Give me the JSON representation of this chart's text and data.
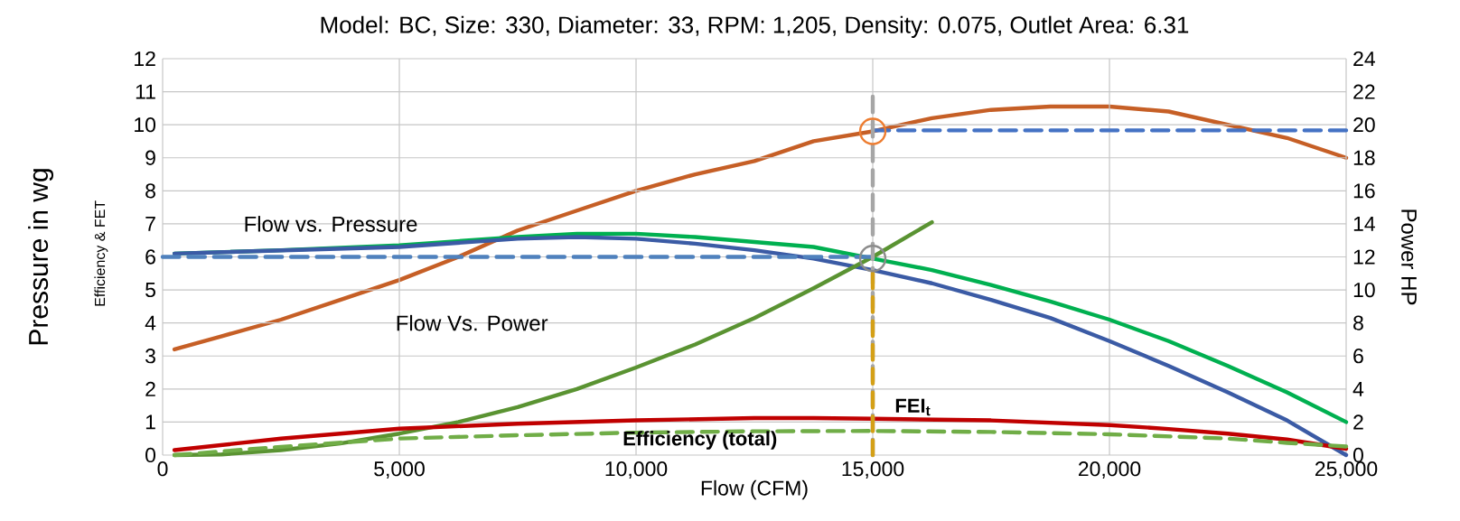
{
  "chart_data": {
    "type": "line",
    "title": "Model: BC, Size: 330, Diameter: 33, RPM: 1,205, Density: 0.075, Outlet Area: 6.31",
    "xlabel": "Flow (CFM)",
    "ylabel": "Pressure in wg",
    "y2label": "Power HP",
    "annotations": [
      "Flow vs. Pressure",
      "Flow Vs. Power",
      "FEI$_{t}$",
      "Efficiency (total)",
      "Efficiency & FET"
    ],
    "xlim": [
      0,
      25000
    ],
    "xticks": [
      0,
      {
        "value": 5000,
        "label": "5,000"
      },
      {
        "value": 10000,
        "label": "10,000"
      },
      {
        "value": 15000,
        "label": "15,000"
      },
      {
        "value": 20000,
        "label": "20,000"
      },
      {
        "value": 25000,
        "label": "25,000"
      }
    ],
    "ylim": [
      0,
      12
    ],
    "yticks": [
      0,
      1,
      2,
      3,
      4,
      5,
      6,
      7,
      8,
      9,
      10,
      11,
      12
    ],
    "y2lim": [
      0,
      24
    ],
    "y2ticks": [
      0,
      2,
      4,
      6,
      8,
      10,
      12,
      14,
      16,
      18,
      20,
      22,
      24
    ],
    "grid": true,
    "line_style": "solid",
    "marker": "none",
    "series": [
      {
        "color": "#00b050",
        "x": [
          250,
          2500,
          5000,
          7500,
          8750,
          10000,
          11250,
          12500,
          13750,
          15000,
          16250,
          17500,
          18750,
          20000,
          21250,
          22500,
          23750,
          25000
        ],
        "values": [
          6.1,
          6.2,
          6.35,
          6.6,
          6.7,
          6.7,
          6.6,
          6.45,
          6.3,
          5.95,
          5.6,
          5.15,
          4.65,
          4.1,
          3.45,
          2.7,
          1.9,
          1.0
        ]
      },
      {
        "color": "#3b5ba5",
        "x": [
          250,
          5000,
          7500,
          8750,
          10000,
          11250,
          12500,
          13750,
          15000,
          16250,
          17500,
          18750,
          20000,
          21250,
          22500,
          23750,
          25000
        ],
        "values": [
          6.1,
          6.3,
          6.55,
          6.6,
          6.55,
          6.4,
          6.2,
          5.95,
          5.6,
          5.2,
          4.7,
          4.15,
          3.45,
          2.7,
          1.9,
          1.05,
          0.0
        ]
      },
      {
        "color": "#5a9332",
        "x": [
          250,
          1250,
          2500,
          3750,
          5000,
          6250,
          7500,
          8750,
          10000,
          11250,
          12500,
          13750,
          15000,
          16250
        ],
        "values": [
          0.0,
          0.02,
          0.15,
          0.35,
          0.65,
          1.0,
          1.45,
          2.0,
          2.65,
          3.35,
          4.15,
          5.05,
          6.0,
          7.05
        ]
      },
      {
        "color": "#c00000",
        "x": [
          250,
          2500,
          5000,
          7500,
          10000,
          12500,
          13750,
          15000,
          17500,
          20000,
          21250,
          22500,
          23750,
          25000
        ],
        "values": [
          0.15,
          0.5,
          0.8,
          0.95,
          1.05,
          1.12,
          1.12,
          1.1,
          1.05,
          0.91,
          0.79,
          0.65,
          0.47,
          0.19
        ]
      },
      {
        "color": "#70ad47",
        "line_style": "dashed",
        "x": [
          250,
          2500,
          5000,
          7500,
          10000,
          12500,
          15000,
          17500,
          20000,
          22500,
          23750,
          25000
        ],
        "values": [
          0.0,
          0.25,
          0.5,
          0.6,
          0.68,
          0.72,
          0.73,
          0.7,
          0.63,
          0.5,
          0.37,
          0.26
        ]
      },
      {
        "color": "#c65f26",
        "axis": "y2",
        "x": [
          250,
          1250,
          2500,
          3750,
          5000,
          6250,
          7500,
          8750,
          10000,
          11250,
          12500,
          13750,
          15000,
          16250,
          17500,
          18750,
          20000,
          21250,
          22500,
          23750,
          25000
        ],
        "values": [
          6.4,
          7.2,
          8.2,
          9.4,
          10.6,
          12.0,
          13.6,
          14.8,
          16.0,
          17.0,
          17.8,
          19.0,
          19.6,
          20.4,
          20.9,
          21.1,
          21.1,
          20.8,
          20.0,
          19.2,
          18.0
        ]
      },
      {
        "color": "#4f81bd",
        "line_style": "dashed",
        "x": [
          0,
          15000
        ],
        "values": [
          6,
          6
        ]
      },
      {
        "color": "#4472c4",
        "line_style": "dashed",
        "x": [
          15000,
          25000
        ],
        "values": [
          9.83,
          9.83
        ]
      },
      {
        "color": "#a6a6a6",
        "line_style": "dashed",
        "x": [
          15000,
          15000
        ],
        "values": [
          10.85,
          0
        ]
      },
      {
        "color": "#d4a017",
        "line_style": "dashed",
        "x": [
          15000,
          15000
        ],
        "values": [
          5.5,
          0
        ]
      },
      {
        "type": "scatter",
        "marker": "circle",
        "color": "#ed7d31",
        "x": [
          15000
        ],
        "values": [
          9.8
        ]
      },
      {
        "type": "scatter",
        "marker": "circle",
        "color": "#8c8c8c",
        "x": [
          15000
        ],
        "values": [
          5.95
        ]
      }
    ]
  }
}
